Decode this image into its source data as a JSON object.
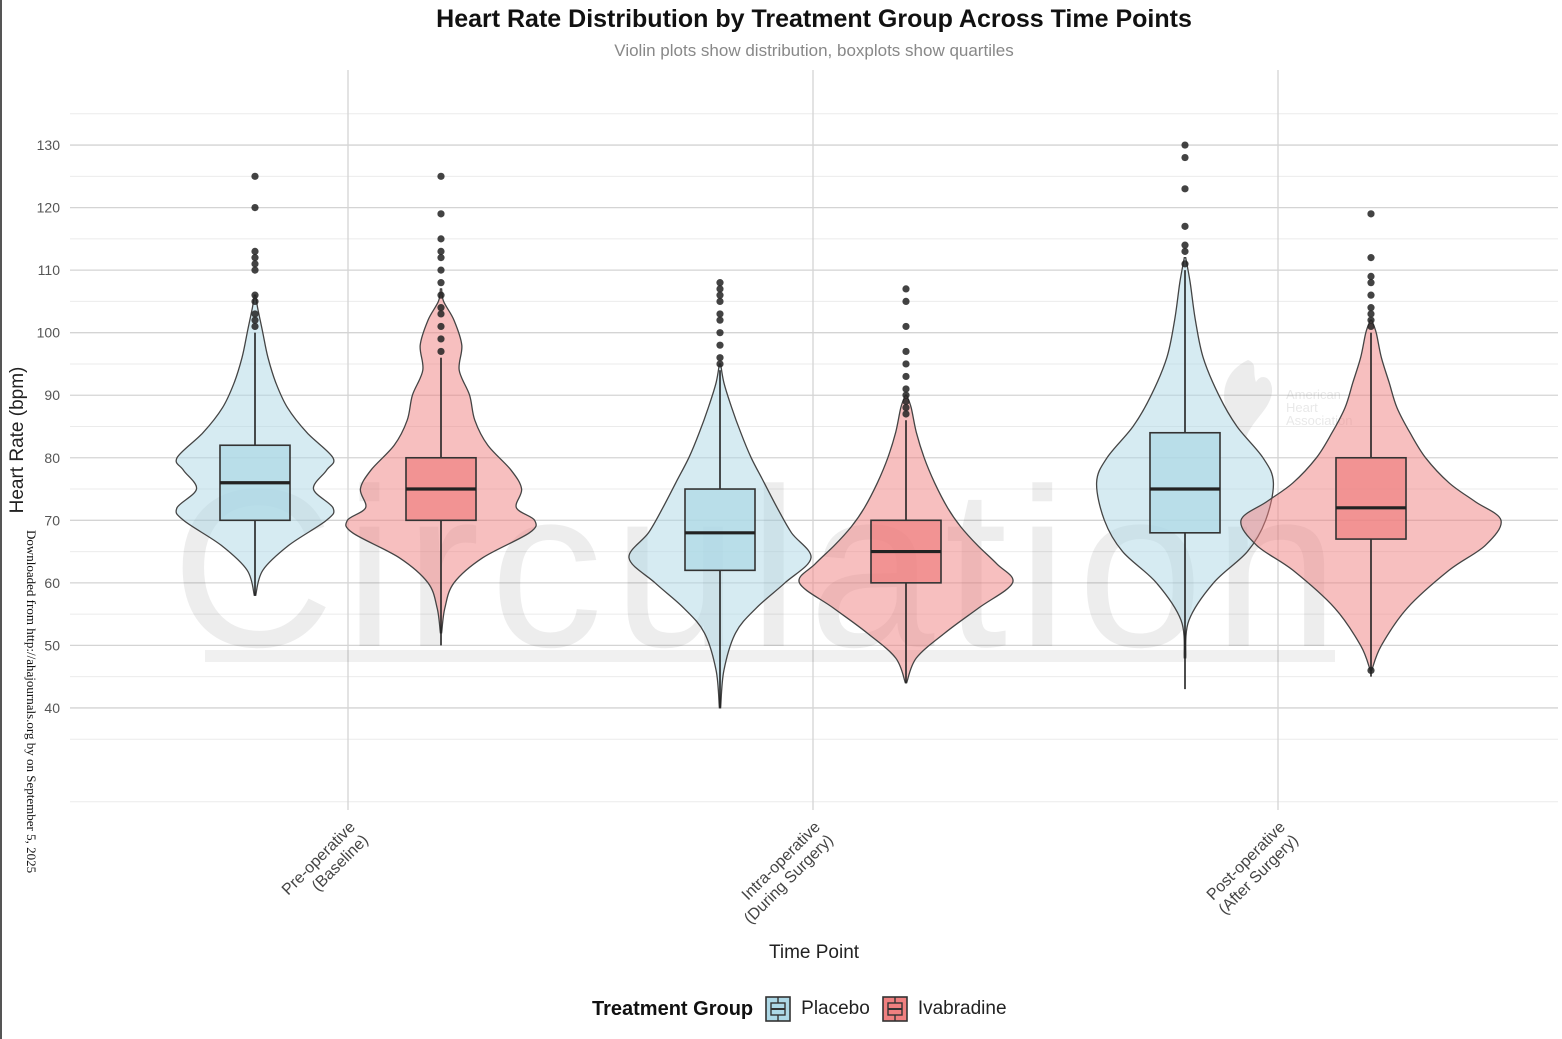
{
  "chart_data": {
    "type": "violin",
    "title": "Heart Rate Distribution by Treatment Group Across Time Points",
    "subtitle": "Violin plots show distribution, boxplots show quartiles",
    "xlabel": "Time Point",
    "ylabel": "Heart Rate (bpm)",
    "categories": [
      [
        "Pre-operative",
        "(Baseline)"
      ],
      [
        "Intra-operative",
        "(During Surgery)"
      ],
      [
        "Post-operative",
        "(After Surgery)"
      ]
    ],
    "yticks": [
      40,
      50,
      60,
      70,
      80,
      90,
      100,
      110,
      120,
      130
    ],
    "ylim": [
      24,
      142
    ],
    "grid": true,
    "legend": {
      "title": "Treatment Group",
      "position": "bottom"
    },
    "series": [
      {
        "name": "Placebo",
        "color": "#add8e6",
        "groups": [
          {
            "box": {
              "q1": 70,
              "median": 76,
              "q3": 82,
              "whisker_low": 58,
              "whisker_high": 100
            },
            "outliers": [
              101,
              102,
              103,
              105,
              106,
              110,
              111,
              112,
              113,
              120,
              125
            ],
            "density": [
              [
                58,
                0.5
              ],
              [
                62,
                6
              ],
              [
                66,
                26
              ],
              [
                70,
                55
              ],
              [
                72,
                60
              ],
              [
                75,
                45
              ],
              [
                78,
                55
              ],
              [
                80,
                60
              ],
              [
                84,
                40
              ],
              [
                88,
                25
              ],
              [
                92,
                16
              ],
              [
                96,
                10
              ],
              [
                100,
                6
              ],
              [
                104,
                2
              ],
              [
                106,
                0.5
              ]
            ]
          },
          {
            "box": {
              "q1": 62,
              "median": 68,
              "q3": 75,
              "whisker_low": 40,
              "whisker_high": 94
            },
            "outliers": [
              95,
              96,
              98,
              100,
              102,
              103,
              105,
              106,
              107,
              108
            ],
            "density": [
              [
                40,
                0.5
              ],
              [
                46,
                3
              ],
              [
                52,
                12
              ],
              [
                56,
                28
              ],
              [
                60,
                50
              ],
              [
                64,
                70
              ],
              [
                68,
                55
              ],
              [
                72,
                44
              ],
              [
                76,
                34
              ],
              [
                80,
                24
              ],
              [
                84,
                16
              ],
              [
                88,
                9
              ],
              [
                92,
                3
              ],
              [
                95,
                0.5
              ]
            ]
          },
          {
            "box": {
              "q1": 68,
              "median": 75,
              "q3": 84,
              "whisker_low": 43,
              "whisker_high": 110
            },
            "outliers": [
              111,
              113,
              114,
              117,
              123,
              128,
              130
            ],
            "density": [
              [
                48,
                0.5
              ],
              [
                54,
                3
              ],
              [
                60,
                22
              ],
              [
                65,
                48
              ],
              [
                70,
                62
              ],
              [
                76,
                68
              ],
              [
                80,
                60
              ],
              [
                85,
                40
              ],
              [
                90,
                26
              ],
              [
                96,
                14
              ],
              [
                102,
                8
              ],
              [
                108,
                4
              ],
              [
                112,
                0.5
              ]
            ]
          }
        ]
      },
      {
        "name": "Ivabradine",
        "color": "#f08080",
        "groups": [
          {
            "box": {
              "q1": 70,
              "median": 75,
              "q3": 80,
              "whisker_low": 50,
              "whisker_high": 96
            },
            "outliers": [
              97,
              99,
              101,
              103,
              104,
              106,
              108,
              110,
              112,
              113,
              115,
              119,
              125
            ],
            "density": [
              [
                52,
                0.5
              ],
              [
                56,
                3
              ],
              [
                60,
                10
              ],
              [
                64,
                32
              ],
              [
                68,
                68
              ],
              [
                70,
                72
              ],
              [
                72,
                58
              ],
              [
                75,
                62
              ],
              [
                78,
                54
              ],
              [
                82,
                36
              ],
              [
                86,
                26
              ],
              [
                90,
                22
              ],
              [
                94,
                14
              ],
              [
                98,
                16
              ],
              [
                102,
                10
              ],
              [
                105,
                2
              ],
              [
                107,
                0.5
              ]
            ]
          },
          {
            "box": {
              "q1": 60,
              "median": 65,
              "q3": 70,
              "whisker_low": 44,
              "whisker_high": 86
            },
            "outliers": [
              87,
              88,
              89,
              90,
              91,
              93,
              95,
              97,
              101,
              105,
              107
            ],
            "density": [
              [
                44,
                0.5
              ],
              [
                48,
                8
              ],
              [
                52,
                30
              ],
              [
                56,
                56
              ],
              [
                60,
                82
              ],
              [
                63,
                70
              ],
              [
                66,
                55
              ],
              [
                69,
                42
              ],
              [
                72,
                32
              ],
              [
                76,
                22
              ],
              [
                80,
                14
              ],
              [
                84,
                8
              ],
              [
                88,
                4
              ],
              [
                90,
                0.5
              ]
            ]
          },
          {
            "box": {
              "q1": 67,
              "median": 72,
              "q3": 80,
              "whisker_low": 45,
              "whisker_high": 100
            },
            "outliers": [
              46,
              101,
              102,
              103,
              104,
              106,
              108,
              109,
              112,
              119
            ],
            "density": [
              [
                46,
                0.5
              ],
              [
                50,
                8
              ],
              [
                56,
                28
              ],
              [
                62,
                60
              ],
              [
                66,
                88
              ],
              [
                70,
                100
              ],
              [
                73,
                80
              ],
              [
                76,
                60
              ],
              [
                80,
                42
              ],
              [
                84,
                30
              ],
              [
                88,
                20
              ],
              [
                92,
                14
              ],
              [
                96,
                8
              ],
              [
                100,
                4
              ],
              [
                102,
                0.5
              ]
            ]
          }
        ]
      }
    ],
    "side_note": "Downloaded from http://ahajournals.org by on September 5, 2025",
    "watermark": {
      "text": "Circulation",
      "logo": "American Heart Association"
    }
  }
}
